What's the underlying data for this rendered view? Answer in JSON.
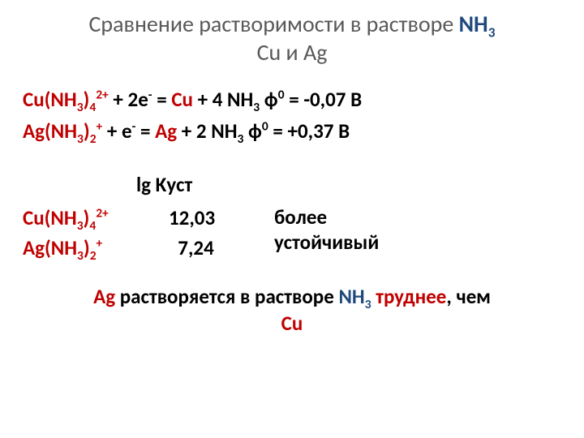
{
  "title": {
    "pre": "Cравнение растворимости в растворе ",
    "nh3": "NH",
    "nh3_sub": "3",
    "line2_cu": "Cu",
    "line2_mid": " и ",
    "line2_ag": "Ag"
  },
  "eq_cu": {
    "species_base": "Cu(NH",
    "species_sub1": "3",
    "species_mid": ")",
    "species_sub2": "4",
    "species_sup": "2+",
    "plus_e": " + 2e",
    "e_sup": "-",
    "eq_sign": "  = ",
    "prod_metal": "Cu",
    "prod_rest_a": " + 4 NH",
    "prod_rest_sub": "3",
    "phi_pre": "  ф",
    "phi_sup": "0",
    "phi_val": " = -0,07 В"
  },
  "eq_ag": {
    "species_base": "Ag(NH",
    "species_sub1": "3",
    "species_mid": ")",
    "species_sub2": "2",
    "species_sup": "+",
    "plus_e": " + e",
    "e_sup": "-",
    "eq_sign": "  = ",
    "prod_metal": "Ag",
    "prod_rest_a": " + 2 NH",
    "prod_rest_sub": "3",
    "phi_pre": "    ф",
    "phi_sup": "0",
    "phi_val": " = +0,37 В"
  },
  "stability": {
    "header": "lg Kуст",
    "cu": {
      "base": "Cu(NH",
      "sub1": "3",
      "mid": ")",
      "sub2": "4",
      "sup": "2+",
      "value": "12,03"
    },
    "ag": {
      "base": "Ag(NH",
      "sub1": "3",
      "mid": ")",
      "sub2": "2",
      "sup": "+",
      "value": "  7,24"
    },
    "note_l1": "более",
    "note_l2": "устойчивый"
  },
  "conclusion": {
    "ag": "Ag",
    "mid1": " растворяется в растворе ",
    "nh3": "NH",
    "nh3_sub": "3",
    "gap": " ",
    "hard": "труднее",
    "mid2": ", чем ",
    "cu": "Cu"
  },
  "colors": {
    "title_gray": "#595959",
    "blue": "#1f497d",
    "red": "#c00000",
    "black": "#000000",
    "bg": "#ffffff"
  },
  "fonts": {
    "title_size_pt": 28,
    "body_size_pt": 25,
    "family": "Calibri"
  }
}
